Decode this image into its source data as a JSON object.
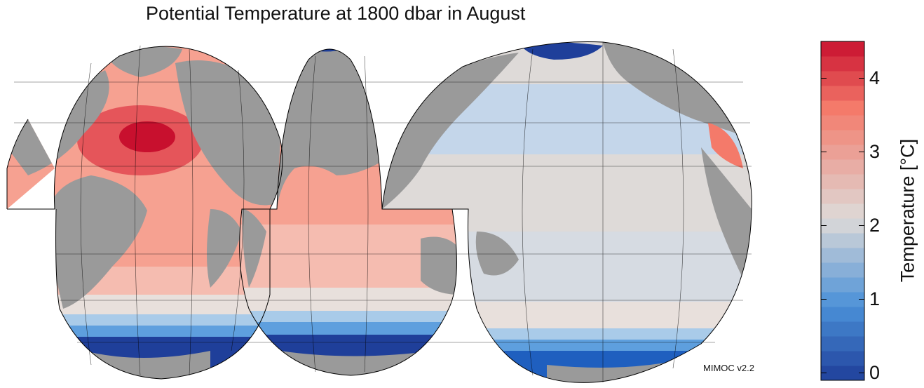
{
  "title": "Potential Temperature at 1800 dbar in August",
  "credit": "MIMOC v2.2",
  "colorbar": {
    "label": "Temperature [°C]",
    "min": -0.1,
    "max": 4.5,
    "ticks": [
      0,
      1,
      2,
      3,
      4
    ],
    "colors": {
      "cold": "#1f3f9a",
      "cool": "#4a90d8",
      "mid": "#dedad8",
      "warm": "#f47a6a",
      "hot": "#c8102e"
    }
  },
  "map": {
    "projection": "interrupted-goode-homolosine",
    "land_color": "#9a9a9a",
    "no_data_color": "#ffffff"
  }
}
